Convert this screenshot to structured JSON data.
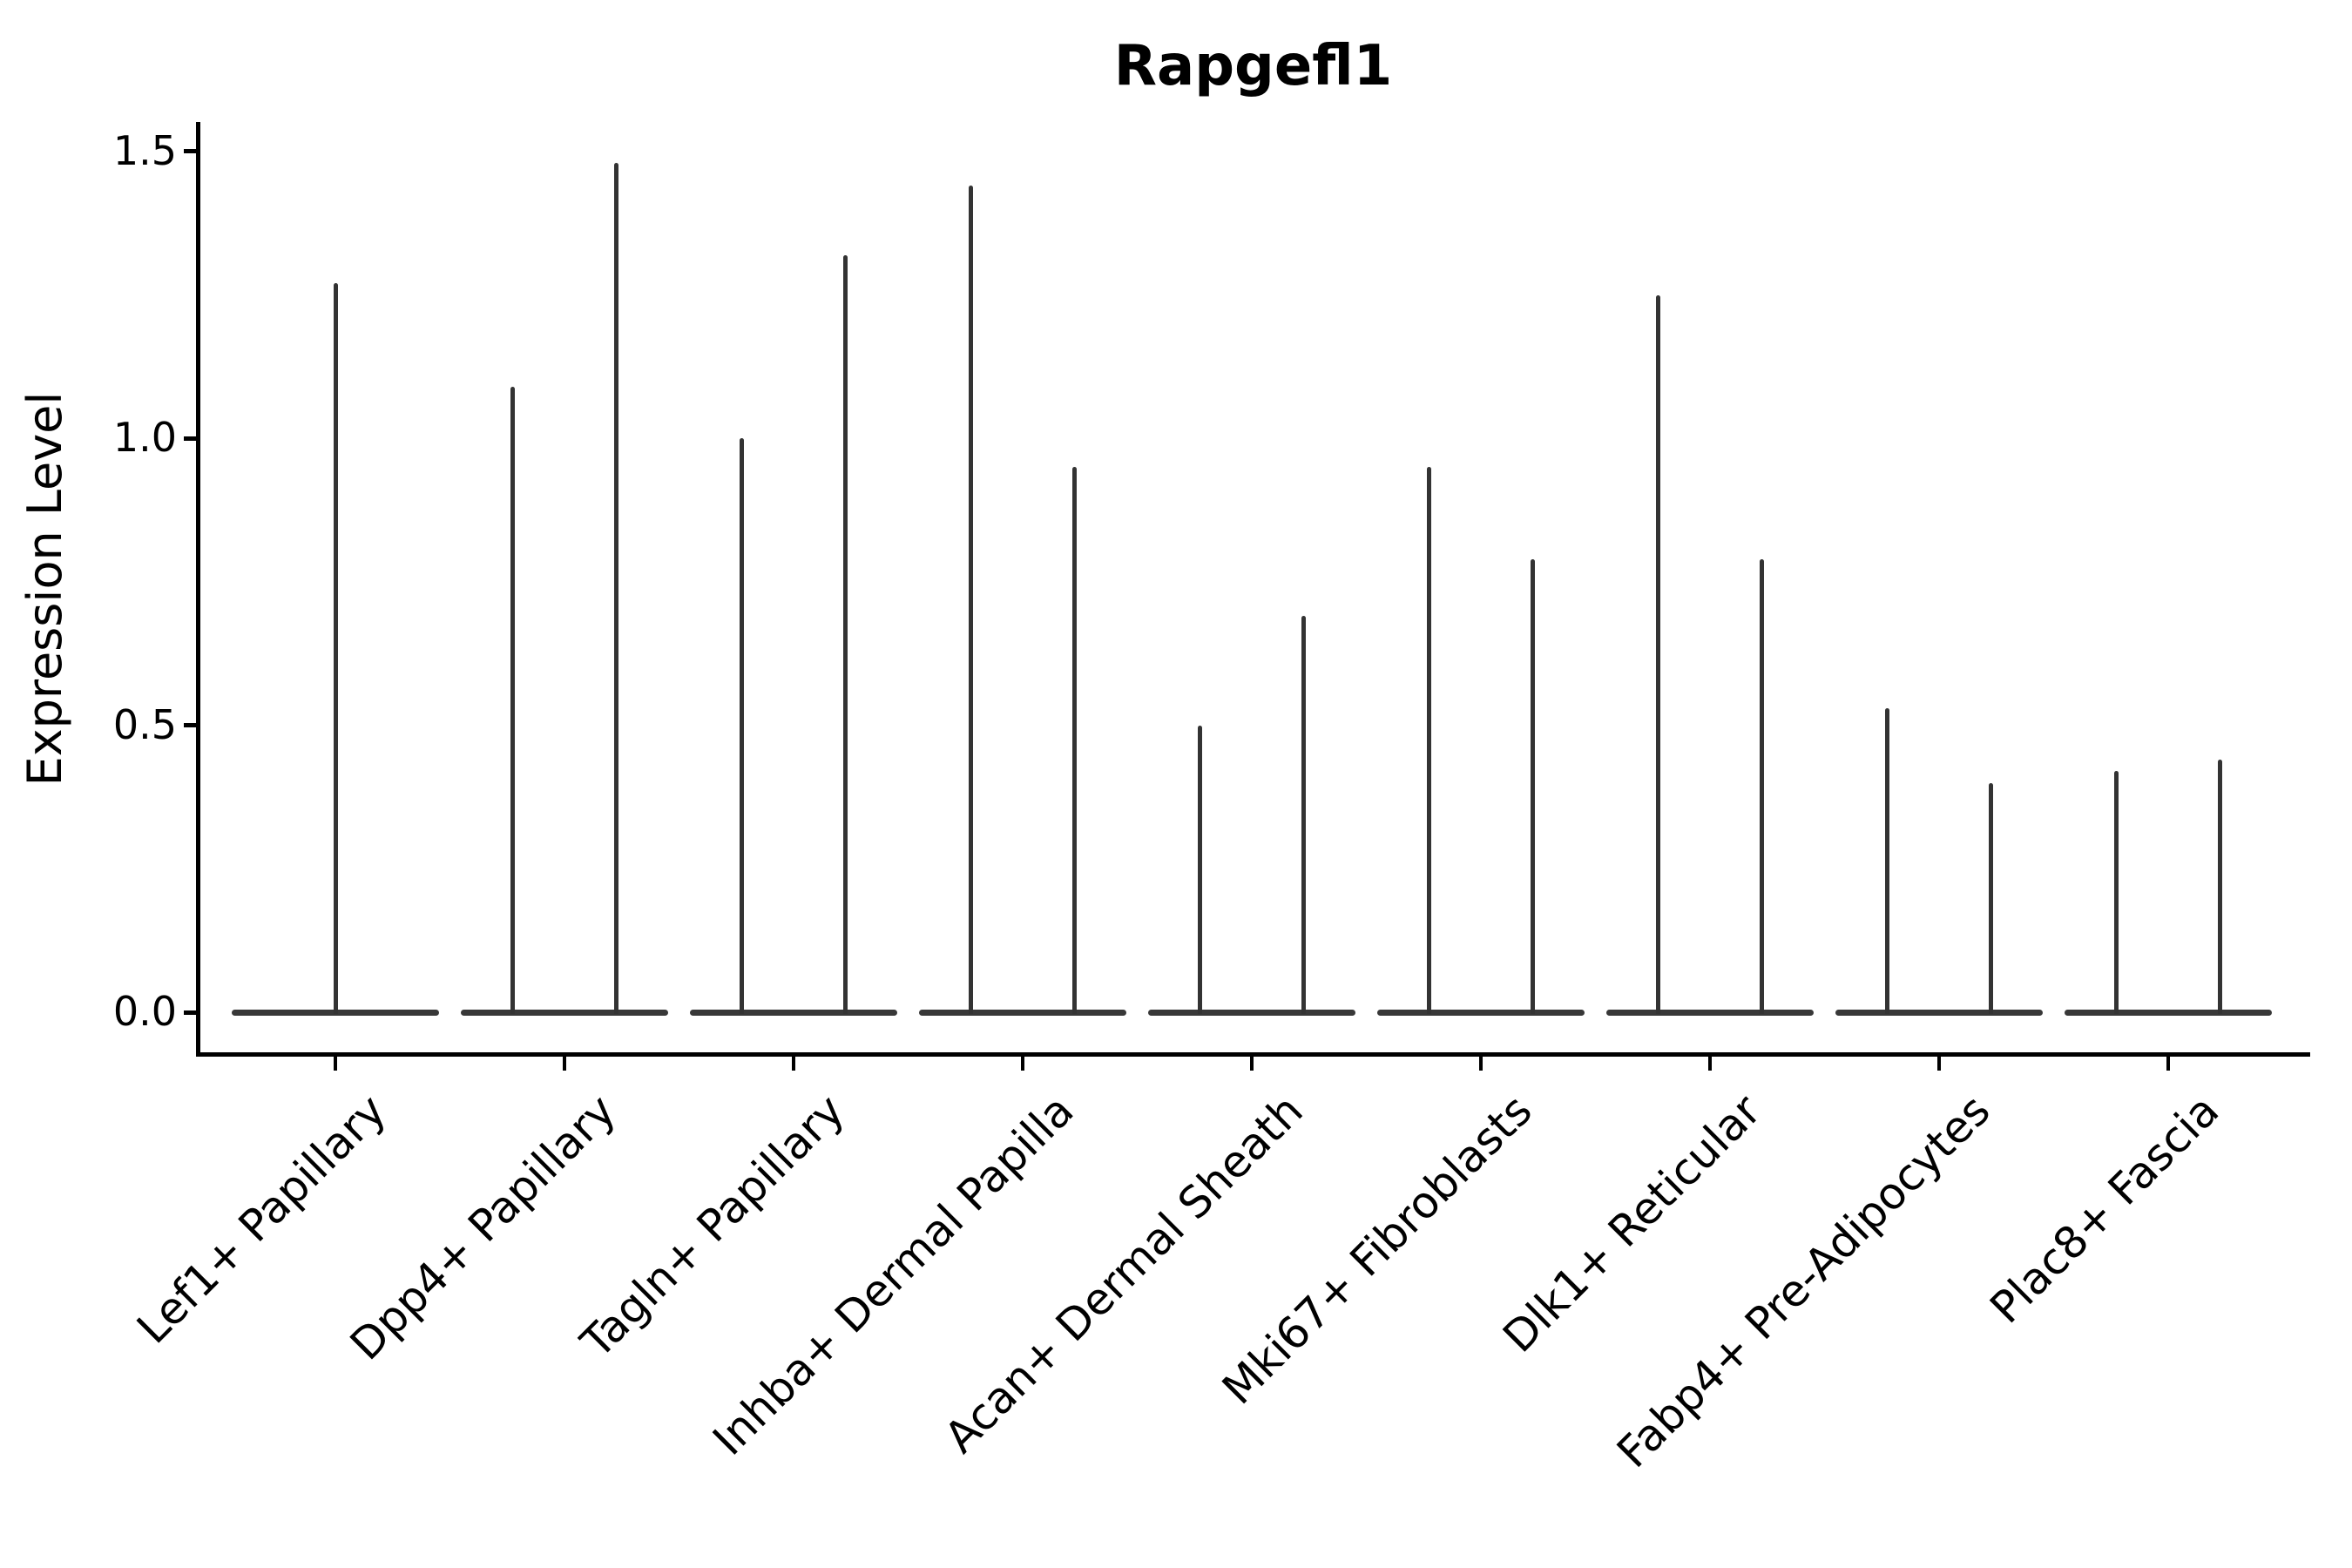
{
  "title": "Rapgefl1",
  "axes": {
    "ylabel": "Expression Level",
    "ytick_labels": [
      "0.0",
      "0.5",
      "1.0",
      "1.5"
    ]
  },
  "colors": {
    "background": "#ffffff",
    "axis": "#000000",
    "text": "#000000",
    "violin": "#333333",
    "violin_base": "#383838"
  },
  "chart_data": {
    "type": "violin",
    "title": "Rapgefl1",
    "xlabel": "",
    "ylabel": "Expression Level",
    "ylim": [
      -0.07,
      1.55
    ],
    "yticks": [
      0.0,
      0.5,
      1.0,
      1.5
    ],
    "grid": false,
    "legend": "none",
    "style_note": "Needle-thin violins on a white background: expression is concentrated at 0 (flat dark base bar spanning each category) with hairline spikes rising to each group's maximum. First category has a single centered spike; all other categories show two spikes.",
    "categories": [
      "Lef1+ Papillary",
      "Dpp4+ Papillary",
      "Tagln+ Papillary",
      "Inhba+ Dermal Papilla",
      "Acan+ Dermal Sheath",
      "Mki67+ Fibroblasts",
      "Dlk1+ Reticular",
      "Fabp4+ Pre-Adipocytes",
      "Plac8+ Fascia"
    ],
    "baseline_value": 0.0,
    "spike_max_values": [
      [
        1.27
      ],
      [
        1.09,
        1.48
      ],
      [
        1.0,
        1.32
      ],
      [
        1.44,
        0.95
      ],
      [
        0.5,
        0.69
      ],
      [
        0.95,
        0.79
      ],
      [
        1.25,
        0.79
      ],
      [
        0.53,
        0.4
      ],
      [
        0.42,
        0.44
      ]
    ]
  }
}
